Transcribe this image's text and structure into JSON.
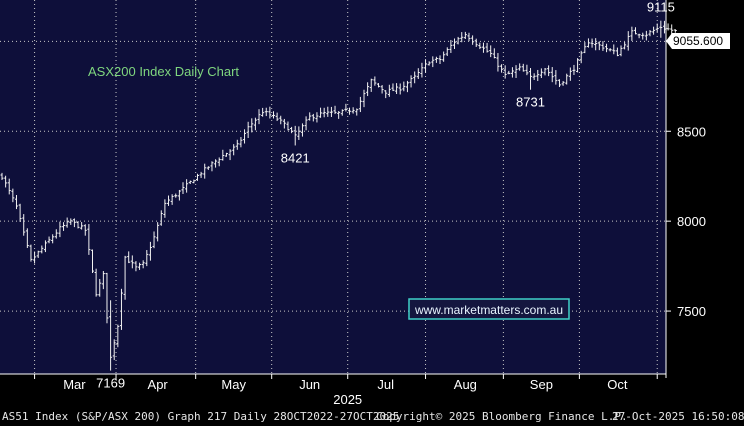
{
  "chart_data": {
    "type": "ohlc",
    "title": "ASX200 Index Daily Chart",
    "watermark": "www.marketmatters.com.au",
    "last_price_label": "9055.600",
    "ylim": [
      7150,
      9230
    ],
    "y_ticks": [
      7500,
      8000,
      8500,
      9000
    ],
    "y_tick_labels": [
      "7500",
      "8000",
      "8500",
      "9000"
    ],
    "x_months": [
      {
        "label": "Mar",
        "day": 20
      },
      {
        "label": "Apr",
        "day": 43
      },
      {
        "label": "May",
        "day": 64
      },
      {
        "label": "Jun",
        "day": 85
      },
      {
        "label": "Jul",
        "day": 106
      },
      {
        "label": "Aug",
        "day": 128
      },
      {
        "label": "Sep",
        "day": 149
      },
      {
        "label": "Oct",
        "day": 170
      }
    ],
    "x_year_label": "2025",
    "annotations": [
      {
        "text": "7169",
        "day": 30,
        "value": 7169,
        "position": "below"
      },
      {
        "text": "8421",
        "day": 81,
        "value": 8421,
        "position": "below"
      },
      {
        "text": "8731",
        "day": 146,
        "value": 8731,
        "position": "below"
      },
      {
        "text": "9115",
        "day": 182,
        "value": 9115,
        "position": "above"
      }
    ],
    "colors": {
      "background": "#000000",
      "plot_background": "#0e0f3a",
      "bars": "#f2f2f2",
      "grid": "#c8c8c8",
      "axis_text": "#ffffff",
      "title": "#7fd67f",
      "watermark_border": "#3fd0c8",
      "watermark_bg": "#14163f"
    },
    "grid": true
  },
  "footer": {
    "left": "AS51 Index (S&P/ASX 200) Graph 217 Daily 28OCT2022-27OCT2025",
    "center": "Copyright© 2025 Bloomberg Finance L.P.",
    "right": "27-Oct-2025 16:50:08"
  }
}
